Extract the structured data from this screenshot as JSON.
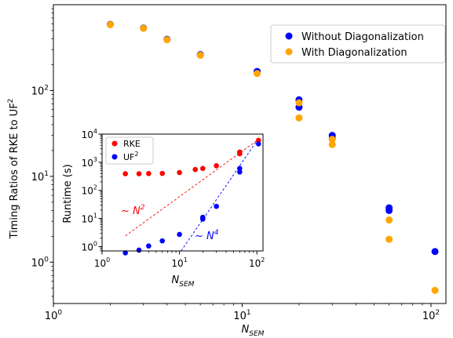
{
  "chart_data": [
    {
      "type": "scatter",
      "xscale": "log",
      "yscale": "log",
      "xlim": [
        1,
        120
      ],
      "ylim": [
        0.33,
        1000
      ],
      "xlabel_base": "N",
      "xlabel_sub": "SEM",
      "ylabel_main": "Timing Ratios of RKE to UF",
      "ylabel_sup": "2",
      "x_ticks": [
        {
          "value": 1,
          "base": "10",
          "exp": "0"
        },
        {
          "value": 10,
          "base": "10",
          "exp": "1"
        },
        {
          "value": 100,
          "base": "10",
          "exp": "2"
        }
      ],
      "y_ticks": [
        {
          "value": 1,
          "base": "10",
          "exp": "0"
        },
        {
          "value": 10,
          "base": "10",
          "exp": "1"
        },
        {
          "value": 100,
          "base": "10",
          "exp": "2"
        }
      ],
      "legend_position": "top-right",
      "series": [
        {
          "name": "Without Diagonalization",
          "color": "#0000ff",
          "points": [
            [
              2,
              590
            ],
            [
              3,
              535
            ],
            [
              4,
              395
            ],
            [
              6,
              262
            ],
            [
              12,
              167
            ],
            [
              20,
              78
            ],
            [
              20,
              64
            ],
            [
              30,
              30
            ],
            [
              30,
              28
            ],
            [
              60,
              4.3
            ],
            [
              60,
              4.0
            ],
            [
              105,
              1.33
            ]
          ]
        },
        {
          "name": "With Diagonalization",
          "color": "#ffa500",
          "points": [
            [
              2,
              585
            ],
            [
              3,
              530
            ],
            [
              4,
              390
            ],
            [
              6,
              258
            ],
            [
              12,
              158
            ],
            [
              20,
              72
            ],
            [
              20,
              48
            ],
            [
              30,
              27
            ],
            [
              30,
              23.5
            ],
            [
              60,
              3.1
            ],
            [
              60,
              1.85
            ],
            [
              105,
              0.47
            ]
          ]
        }
      ]
    },
    {
      "type": "scatter",
      "xscale": "log",
      "yscale": "log",
      "xlim": [
        1,
        120
      ],
      "ylim": [
        0.7,
        10000
      ],
      "xlabel_base": "N",
      "xlabel_sub": "SEM",
      "ylabel": "Runtime (s)",
      "x_ticks": [
        {
          "value": 1,
          "base": "10",
          "exp": "0"
        },
        {
          "value": 10,
          "base": "10",
          "exp": "1"
        },
        {
          "value": 100,
          "base": "10",
          "exp": "2"
        }
      ],
      "y_ticks": [
        {
          "value": 1,
          "label": "10",
          "exp": "0"
        },
        {
          "value": 10,
          "label": "10",
          "exp": "1"
        },
        {
          "value": 100,
          "label": "10",
          "exp": "2"
        },
        {
          "value": 1000,
          "label": "10",
          "exp": "3"
        },
        {
          "value": 10000,
          "label": "10",
          "exp": "4"
        }
      ],
      "legend_position": "top-left",
      "series": [
        {
          "name": "RKE",
          "name_sup": "",
          "color": "#ff0000",
          "points": [
            [
              2,
              390
            ],
            [
              3,
              390
            ],
            [
              4,
              395
            ],
            [
              6,
              400
            ],
            [
              10,
              430
            ],
            [
              16,
              550
            ],
            [
              20,
              600
            ],
            [
              30,
              750
            ],
            [
              60,
              2000
            ],
            [
              60,
              2300
            ],
            [
              105,
              6000
            ]
          ]
        },
        {
          "name": "UF",
          "name_sup": "2",
          "color": "#0000ff",
          "points": [
            [
              2,
              0.6
            ],
            [
              3,
              0.75
            ],
            [
              4,
              1.05
            ],
            [
              6,
              1.6
            ],
            [
              10,
              2.7
            ],
            [
              20,
              9.5
            ],
            [
              20,
              11
            ],
            [
              30,
              27
            ],
            [
              60,
              450
            ],
            [
              60,
              600
            ],
            [
              105,
              4500
            ]
          ]
        }
      ],
      "reference_lines": [
        {
          "label": "~ N",
          "exp": "2",
          "color": "#ff0000",
          "points": [
            [
              2,
              2.4
            ],
            [
              105,
              6500
            ]
          ]
        },
        {
          "label": "~ N",
          "exp": "4",
          "color": "#0000ff",
          "points": [
            [
              10.5,
              0.7
            ],
            [
              105,
              7000
            ]
          ]
        }
      ]
    }
  ]
}
